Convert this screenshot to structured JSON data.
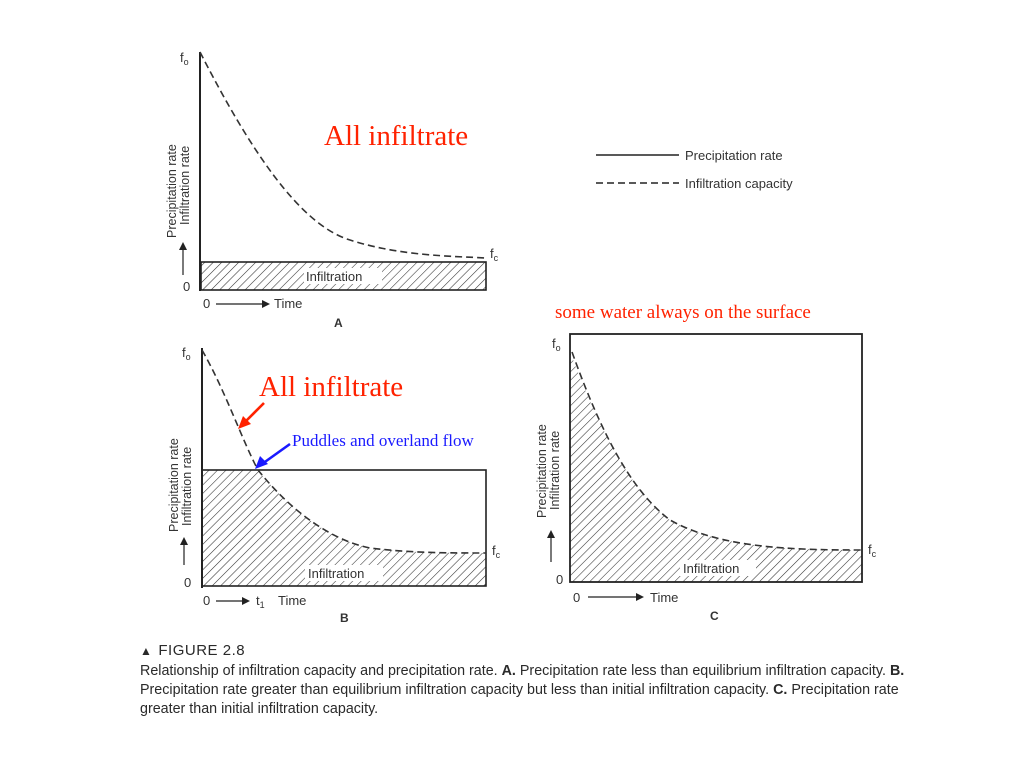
{
  "legend": {
    "precipitation": "Precipitation rate",
    "infiltration": "Infiltration capacity"
  },
  "axes": {
    "ylabel_top": "Precipitation rate",
    "ylabel_bottom": "Infiltration rate",
    "zero": "0",
    "time": "Time",
    "f0_main": "f",
    "f0_sub": "o",
    "fc_main": "f",
    "fc_sub": "c",
    "t1_main": "t",
    "t1_sub": "1",
    "area_label": "Infiltration"
  },
  "panels": [
    {
      "letter": "A"
    },
    {
      "letter": "B"
    },
    {
      "letter": "C"
    }
  ],
  "annotations": {
    "all_infiltrate_a": "All infiltrate",
    "all_infiltrate_b": "All infiltrate",
    "puddles": "Puddles and overland flow",
    "surface": "some water always on the surface"
  },
  "figure": {
    "title": "FIGURE 2.8",
    "lead": "Relationship of infiltration capacity and precipitation rate. ",
    "a_letter": "A.",
    "a_text": " Precipitation rate less than equilibrium infiltration capacity. ",
    "b_letter": "B.",
    "b_text": " Precipitation rate greater than equilibrium infiltration capacity but less than initial infiltration capacity. ",
    "c_letter": "C.",
    "c_text": " Precipitation rate greater than initial infiltration capacity."
  },
  "colors": {
    "annotation_red": "#ff2200",
    "annotation_blue": "#1a1aff",
    "ink": "#2a2a2a"
  }
}
